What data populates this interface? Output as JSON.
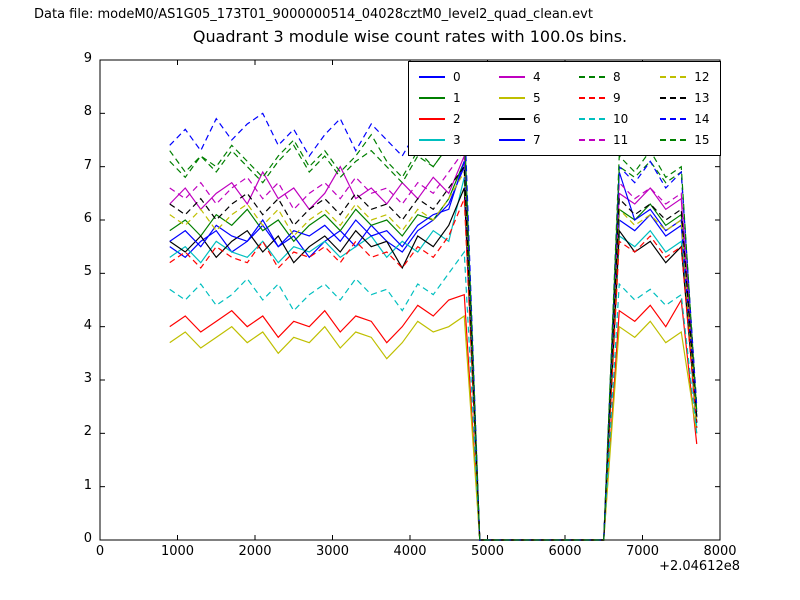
{
  "header": {
    "data_file_label": "Data file: modeM0/AS1G05_173T01_9000000514_04028cztM0_level2_quad_clean.evt"
  },
  "chart_data": {
    "type": "line",
    "title": "Quadrant 3 module wise count rates with 100.0s bins.",
    "xlabel": "",
    "ylabel": "",
    "xlim": [
      0,
      8000
    ],
    "ylim": [
      0,
      9
    ],
    "xticks": [
      0,
      1000,
      2000,
      3000,
      4000,
      5000,
      6000,
      7000,
      8000
    ],
    "yticks": [
      0,
      1,
      2,
      3,
      4,
      5,
      6,
      7,
      8,
      9
    ],
    "x_offset_label": "+2.04612e8",
    "grid": false,
    "legend_position": "upper right",
    "legend_columns": 4,
    "x": [
      900,
      1100,
      1300,
      1500,
      1700,
      1900,
      2100,
      2300,
      2500,
      2700,
      2900,
      3100,
      3300,
      3500,
      3700,
      3900,
      4100,
      4300,
      4500,
      4700,
      4900,
      5100,
      5300,
      5500,
      5700,
      5900,
      6100,
      6300,
      6500,
      6700,
      6900,
      7100,
      7300,
      7500,
      7700
    ],
    "series": [
      {
        "name": "0",
        "color": "#0000ff",
        "dash": false,
        "values": [
          5.5,
          5.3,
          5.6,
          5.8,
          5.4,
          5.6,
          5.9,
          5.5,
          5.7,
          5.3,
          5.6,
          5.8,
          5.5,
          5.9,
          5.6,
          5.4,
          5.8,
          6.0,
          6.3,
          7.0,
          0,
          0,
          0,
          0,
          0,
          0,
          0,
          0,
          0,
          6.0,
          5.8,
          6.1,
          5.7,
          5.9,
          2.2
        ]
      },
      {
        "name": "1",
        "color": "#007f00",
        "dash": false,
        "values": [
          5.8,
          6.0,
          5.7,
          6.1,
          5.9,
          6.2,
          5.8,
          6.0,
          5.6,
          5.9,
          6.1,
          5.8,
          6.2,
          5.9,
          6.0,
          5.7,
          6.1,
          6.0,
          6.4,
          7.1,
          0,
          0,
          0,
          0,
          0,
          0,
          0,
          0,
          0,
          6.2,
          6.0,
          6.3,
          5.9,
          6.1,
          2.4
        ]
      },
      {
        "name": "2",
        "color": "#ff0000",
        "dash": false,
        "values": [
          4.0,
          4.2,
          3.9,
          4.1,
          4.3,
          4.0,
          4.2,
          3.8,
          4.1,
          4.0,
          4.3,
          3.9,
          4.2,
          4.1,
          3.7,
          4.0,
          4.4,
          4.2,
          4.5,
          4.6,
          0,
          0,
          0,
          0,
          0,
          0,
          0,
          0,
          0,
          4.3,
          4.1,
          4.4,
          4.0,
          4.5,
          1.8
        ]
      },
      {
        "name": "3",
        "color": "#00bfbf",
        "dash": false,
        "values": [
          5.3,
          5.5,
          5.2,
          5.6,
          5.4,
          5.3,
          5.6,
          5.2,
          5.5,
          5.4,
          5.6,
          5.3,
          5.5,
          5.7,
          5.3,
          5.6,
          5.4,
          5.8,
          5.6,
          6.8,
          0,
          0,
          0,
          0,
          0,
          0,
          0,
          0,
          0,
          5.7,
          5.5,
          5.8,
          5.4,
          5.6,
          2.1
        ]
      },
      {
        "name": "4",
        "color": "#bf00bf",
        "dash": false,
        "values": [
          6.3,
          6.6,
          6.2,
          6.5,
          6.7,
          6.3,
          6.9,
          6.4,
          6.6,
          6.2,
          6.5,
          7.0,
          6.4,
          6.6,
          6.3,
          6.7,
          6.4,
          6.8,
          6.5,
          7.2,
          0,
          0,
          0,
          0,
          0,
          0,
          0,
          0,
          0,
          6.5,
          6.3,
          6.6,
          6.2,
          6.4,
          2.3
        ]
      },
      {
        "name": "5",
        "color": "#bfbf00",
        "dash": false,
        "values": [
          3.7,
          3.9,
          3.6,
          3.8,
          4.0,
          3.7,
          3.9,
          3.5,
          3.8,
          3.7,
          4.0,
          3.6,
          3.9,
          3.8,
          3.4,
          3.7,
          4.1,
          3.9,
          4.0,
          4.2,
          0,
          0,
          0,
          0,
          0,
          0,
          0,
          0,
          0,
          4.0,
          3.8,
          4.1,
          3.7,
          3.9,
          2.0
        ]
      },
      {
        "name": "6",
        "color": "#000000",
        "dash": false,
        "values": [
          5.6,
          5.4,
          5.7,
          5.3,
          5.6,
          5.8,
          5.4,
          5.7,
          5.2,
          5.5,
          5.7,
          5.4,
          5.8,
          5.5,
          5.6,
          5.1,
          5.7,
          5.5,
          5.9,
          6.6,
          0,
          0,
          0,
          0,
          0,
          0,
          0,
          0,
          0,
          5.8,
          5.4,
          5.6,
          5.2,
          5.5,
          2.2
        ]
      },
      {
        "name": "7",
        "color": "#0000ff",
        "dash": false,
        "values": [
          5.6,
          5.8,
          5.5,
          5.9,
          5.7,
          5.6,
          6.0,
          5.5,
          5.8,
          5.7,
          5.9,
          5.6,
          6.0,
          5.7,
          5.8,
          5.5,
          5.9,
          6.1,
          6.2,
          7.1,
          0,
          0,
          0,
          0,
          0,
          0,
          0,
          0,
          0,
          6.9,
          6.0,
          6.2,
          5.8,
          6.0,
          2.3
        ]
      },
      {
        "name": "8",
        "color": "#007f00",
        "dash": true,
        "values": [
          7.3,
          6.9,
          7.2,
          7.0,
          7.4,
          7.1,
          6.8,
          7.2,
          7.5,
          7.0,
          7.3,
          6.9,
          7.2,
          7.6,
          7.1,
          6.8,
          7.3,
          7.0,
          7.4,
          7.8,
          0,
          0,
          0,
          0,
          0,
          0,
          0,
          0,
          0,
          7.0,
          6.8,
          7.1,
          6.7,
          6.9,
          2.5
        ]
      },
      {
        "name": "9",
        "color": "#ff0000",
        "dash": true,
        "values": [
          5.2,
          5.4,
          5.1,
          5.5,
          5.3,
          5.2,
          5.6,
          5.1,
          5.4,
          5.3,
          5.5,
          5.2,
          5.6,
          5.3,
          5.4,
          5.1,
          5.5,
          5.3,
          5.7,
          6.4,
          0,
          0,
          0,
          0,
          0,
          0,
          0,
          0,
          0,
          5.6,
          5.4,
          5.7,
          5.3,
          5.5,
          2.1
        ]
      },
      {
        "name": "10",
        "color": "#00bfbf",
        "dash": true,
        "values": [
          4.7,
          4.5,
          4.8,
          4.4,
          4.6,
          4.9,
          4.5,
          4.8,
          4.3,
          4.6,
          4.8,
          4.5,
          4.9,
          4.6,
          4.7,
          4.3,
          4.8,
          4.6,
          5.0,
          5.4,
          0,
          0,
          0,
          0,
          0,
          0,
          0,
          0,
          0,
          4.8,
          4.5,
          4.7,
          4.4,
          4.6,
          2.0
        ]
      },
      {
        "name": "11",
        "color": "#bf00bf",
        "dash": true,
        "values": [
          6.6,
          6.4,
          6.7,
          6.3,
          6.6,
          6.8,
          6.4,
          6.7,
          6.2,
          6.5,
          6.7,
          6.4,
          6.8,
          6.5,
          6.6,
          6.3,
          6.7,
          6.5,
          6.9,
          7.3,
          0,
          0,
          0,
          0,
          0,
          0,
          0,
          0,
          0,
          6.7,
          6.4,
          6.6,
          6.3,
          6.5,
          2.4
        ]
      },
      {
        "name": "12",
        "color": "#bfbf00",
        "dash": true,
        "values": [
          6.1,
          5.9,
          6.2,
          5.8,
          6.1,
          6.3,
          5.9,
          6.2,
          5.7,
          6.0,
          6.2,
          5.9,
          6.3,
          6.0,
          6.1,
          5.8,
          6.2,
          6.0,
          6.4,
          6.9,
          0,
          0,
          0,
          0,
          0,
          0,
          0,
          0,
          0,
          6.2,
          5.9,
          6.1,
          5.8,
          6.0,
          2.2
        ]
      },
      {
        "name": "13",
        "color": "#000000",
        "dash": true,
        "values": [
          6.3,
          6.1,
          6.4,
          6.0,
          6.3,
          6.5,
          6.1,
          6.4,
          5.9,
          6.2,
          6.4,
          6.1,
          6.5,
          6.2,
          6.3,
          6.0,
          6.4,
          6.2,
          6.6,
          7.0,
          0,
          0,
          0,
          0,
          0,
          0,
          0,
          0,
          0,
          6.4,
          6.1,
          6.3,
          6.0,
          6.2,
          2.3
        ]
      },
      {
        "name": "14",
        "color": "#0000ff",
        "dash": true,
        "values": [
          7.4,
          7.7,
          7.3,
          7.9,
          7.5,
          7.8,
          8.0,
          7.4,
          7.7,
          7.2,
          7.6,
          7.9,
          7.3,
          7.8,
          7.5,
          7.2,
          7.7,
          7.4,
          7.9,
          8.1,
          0,
          0,
          0,
          0,
          0,
          0,
          0,
          0,
          0,
          7.0,
          6.7,
          7.1,
          6.6,
          6.9,
          2.5
        ]
      },
      {
        "name": "15",
        "color": "#007f00",
        "dash": true,
        "values": [
          7.1,
          6.8,
          7.2,
          6.9,
          7.3,
          7.0,
          6.7,
          7.1,
          7.4,
          6.9,
          7.2,
          6.8,
          7.1,
          7.3,
          7.0,
          6.7,
          7.2,
          7.0,
          7.4,
          7.6,
          0,
          0,
          0,
          0,
          0,
          0,
          0,
          0,
          0,
          7.2,
          6.9,
          7.3,
          6.8,
          7.0,
          2.4
        ]
      }
    ]
  }
}
